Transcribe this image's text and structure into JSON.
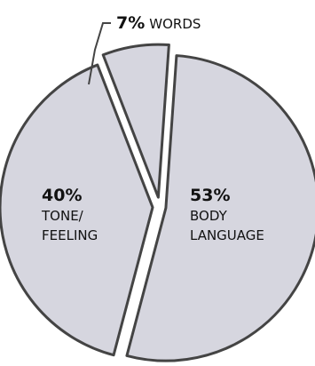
{
  "chart_data": {
    "type": "pie",
    "slices": [
      {
        "pct": "53%",
        "lines": [
          "BODY",
          "LANGUAGE"
        ],
        "value": 53
      },
      {
        "pct": "40%",
        "lines": [
          "TONE/",
          "FEELING"
        ],
        "value": 40
      },
      {
        "pct": "7%",
        "lines": [
          "WORDS"
        ],
        "value": 7
      }
    ],
    "colors": {
      "fill": "#d6d6df",
      "stroke": "#444444",
      "background": "#ffffff"
    }
  }
}
